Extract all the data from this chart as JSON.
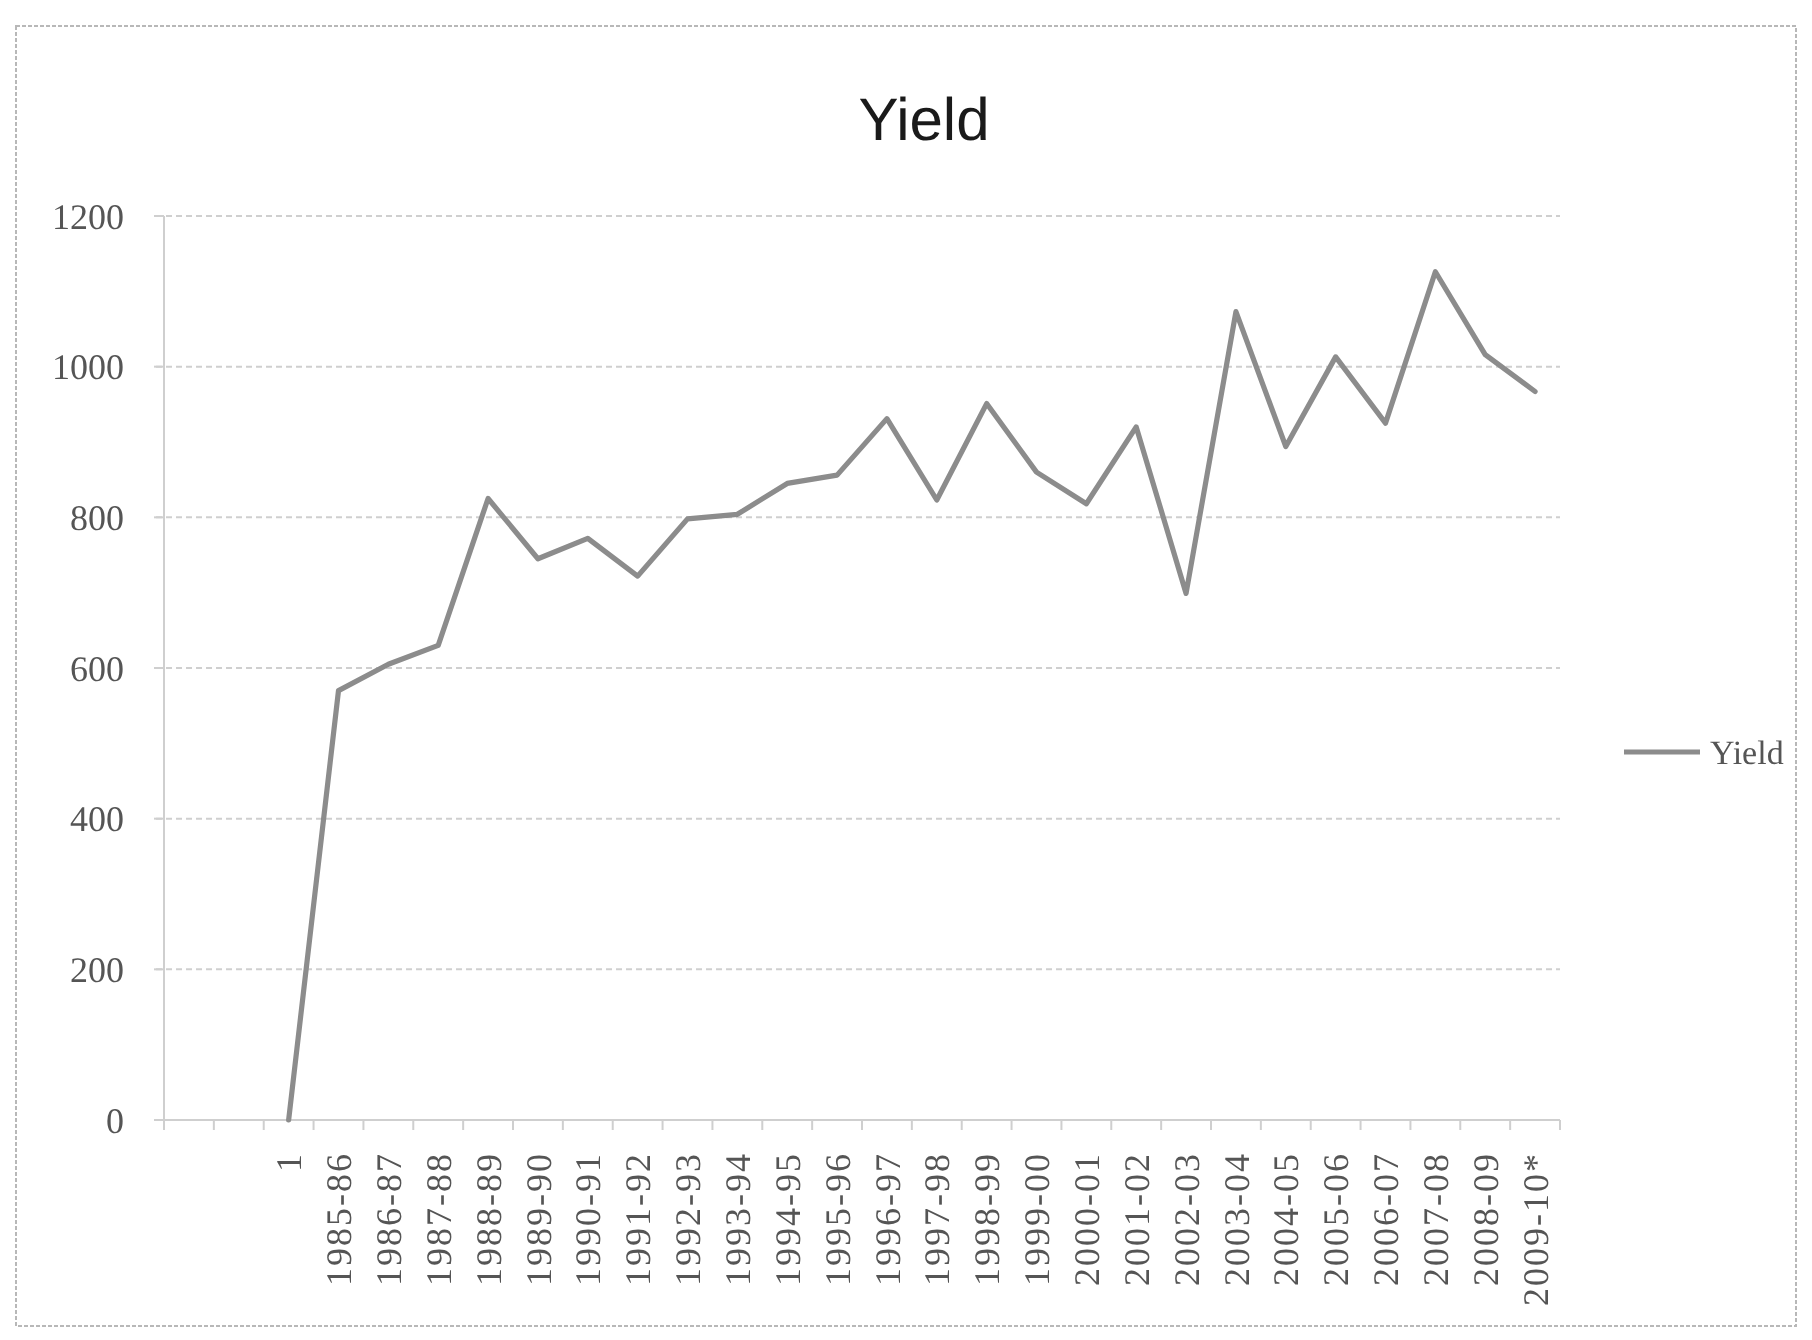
{
  "chart_data": {
    "type": "line",
    "title": "Yield",
    "categories": [
      null,
      null,
      "1",
      "1985-86",
      "1986-87",
      "1987-88",
      "1988-89",
      "1989-90",
      "1990-91",
      "1991-92",
      "1992-93",
      "1993-94",
      "1994-95",
      "1995-96",
      "1996-97",
      "1997-98",
      "1998-99",
      "1999-00",
      "2000-01",
      "2001-02",
      "2002-03",
      "2003-04",
      "2004-05",
      "2005-06",
      "2006-07",
      "2007-08",
      "2008-09",
      "2009-10*"
    ],
    "series": [
      {
        "name": "Yield",
        "color": "#8c8c8c",
        "values": [
          null,
          null,
          0,
          570,
          605,
          630,
          825,
          745,
          772,
          722,
          798,
          804,
          845,
          856,
          931,
          823,
          951,
          860,
          818,
          920,
          699,
          1073,
          894,
          1013,
          925,
          1126,
          1016,
          967
        ]
      }
    ],
    "ylim": [
      0,
      1200
    ],
    "yticks": [
      0,
      200,
      400,
      600,
      800,
      1000,
      1200
    ],
    "grid": "y",
    "legend": "right",
    "marker": "none"
  }
}
